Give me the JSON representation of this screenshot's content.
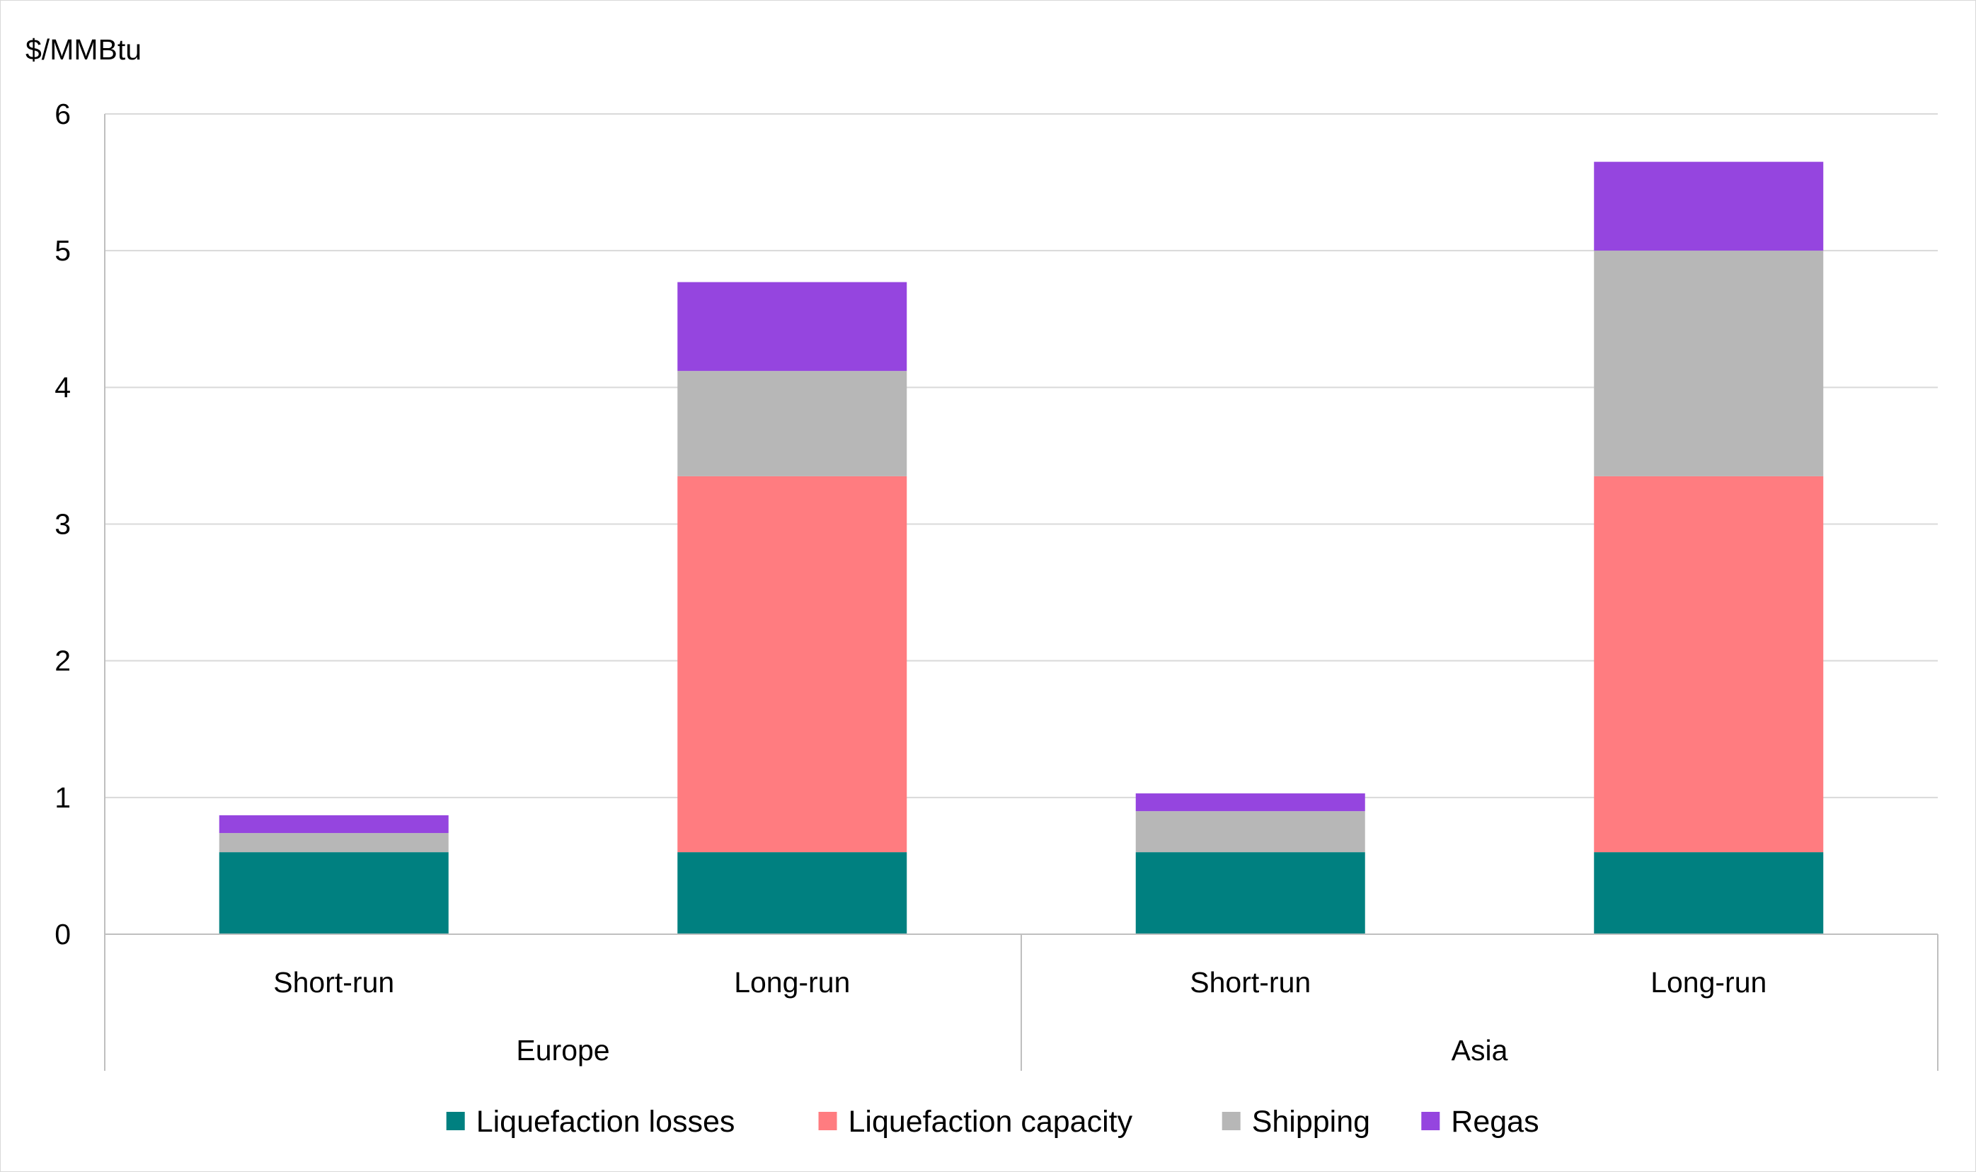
{
  "chart_data": {
    "type": "bar",
    "stacked": true,
    "ylabel": "$/MMBtu",
    "ylim": [
      0,
      6
    ],
    "yticks": [
      0,
      1,
      2,
      3,
      4,
      5,
      6
    ],
    "grid": true,
    "legend_position": "bottom",
    "groups": [
      {
        "name": "Europe",
        "categories": [
          "Short-run",
          "Long-run"
        ]
      },
      {
        "name": "Asia",
        "categories": [
          "Short-run",
          "Long-run"
        ]
      }
    ],
    "categories": [
      "Short-run",
      "Long-run",
      "Short-run",
      "Long-run"
    ],
    "series": [
      {
        "name": "Liquefaction losses",
        "color": "#008080",
        "values": [
          0.6,
          0.6,
          0.6,
          0.6
        ]
      },
      {
        "name": "Liquefaction capacity",
        "color": "#ff7c80",
        "values": [
          0.0,
          2.75,
          0.0,
          2.75
        ]
      },
      {
        "name": "Shipping",
        "color": "#b7b7b7",
        "values": [
          0.14,
          0.77,
          0.3,
          1.65
        ]
      },
      {
        "name": "Regas",
        "color": "#9545df",
        "values": [
          0.13,
          0.65,
          0.13,
          0.65
        ]
      }
    ]
  }
}
